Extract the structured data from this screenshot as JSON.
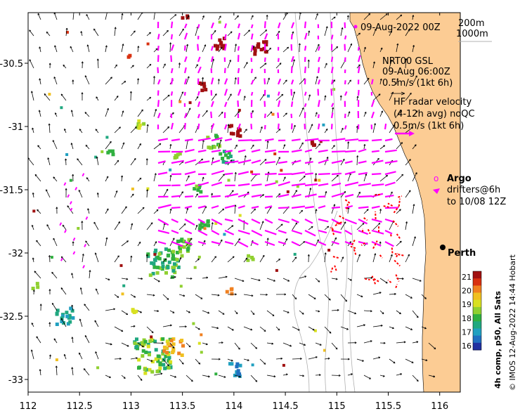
{
  "map": {
    "lon_ticks": [
      "112",
      "112.5",
      "113",
      "113.5",
      "114",
      "114.5",
      "115",
      "115.5",
      "116"
    ],
    "lat_ticks": [
      "-30.5",
      "-31",
      "-31.5",
      "-32",
      "-32.5",
      "-33"
    ],
    "lon_range": [
      112,
      116.2
    ],
    "lat_range": [
      -33.1,
      -30.1
    ],
    "colors": {
      "land": "#fccc94",
      "hf_radar": "#ff00ff",
      "drifter": "#ff0000",
      "bathymetry": "#b0b0b0",
      "ocean": "#ffffff"
    }
  },
  "annotations": {
    "date": "09-Aug-2022 00Z",
    "isobath_1": "200m",
    "isobath_2": "1000m",
    "model_1": "NRT00 GSL",
    "model_2": "09-Aug 06:00Z",
    "model_3": "0.5m/s (1kt 6h)",
    "hf_1": "HF radar velocity",
    "hf_2": "(4-12h avg) noQC",
    "hf_3": "0.5m/s (1kt 6h)",
    "argo": "Argo",
    "argo_marker": "o",
    "drifters_1": "drifters@6h",
    "drifters_2": "to 10/08 12Z",
    "city": "Perth"
  },
  "colorbar": {
    "title": "4h comp, p50, All Sats",
    "labels": [
      "21",
      "20",
      "19",
      "18",
      "17",
      "16"
    ],
    "colors": [
      "#a01010",
      "#d83010",
      "#f08020",
      "#f0c020",
      "#d8e020",
      "#90d030",
      "#30b040",
      "#20a880",
      "#20a0c0",
      "#2070c0",
      "#2030a0"
    ]
  },
  "credit": "© IMOS 12-Aug-2022 14:44 Hobart"
}
